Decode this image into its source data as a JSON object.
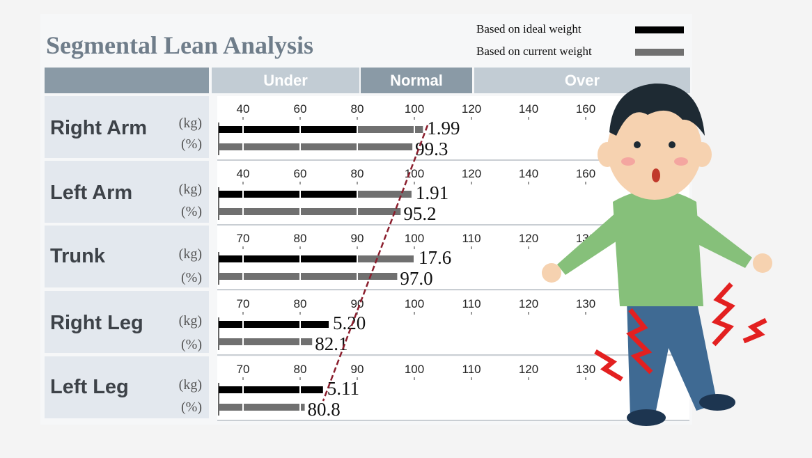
{
  "title": "Segmental Lean Analysis",
  "legend": [
    {
      "label": "Based on ideal weight",
      "color": "#000000"
    },
    {
      "label": "Based on current weight",
      "color": "#707070"
    }
  ],
  "header": {
    "under": "Under",
    "normal": "Normal",
    "over": "Over"
  },
  "units": {
    "kg": "(kg)",
    "pct": "(%)"
  },
  "percent_mark": "%",
  "colors": {
    "header_dark": "#8a9aa6",
    "header_light": "#c2ccd4",
    "trend_line": "#8b1e2d",
    "ideal_bar": "#000000",
    "current_bar": "#707070"
  },
  "chart_data": {
    "type": "bar",
    "title": "Segmental Lean Analysis",
    "orientation": "horizontal",
    "series": [
      {
        "name": "Based on ideal weight"
      },
      {
        "name": "Based on current weight"
      }
    ],
    "rows": [
      {
        "name": "Right Arm",
        "ticks": [
          "40",
          "60",
          "80",
          "100",
          "120",
          "140",
          "160"
        ],
        "axis_min": 40,
        "axis_max": 160,
        "kg_label": "1.99",
        "kg_bar_pct": 103,
        "pct_label": "99.3",
        "pct_bar": 99.3
      },
      {
        "name": "Left Arm",
        "ticks": [
          "40",
          "60",
          "80",
          "100",
          "120",
          "140",
          "160"
        ],
        "axis_min": 40,
        "axis_max": 160,
        "kg_label": "1.91",
        "kg_bar_pct": 99,
        "pct_label": "95.2",
        "pct_bar": 95.2
      },
      {
        "name": "Trunk",
        "ticks": [
          "70",
          "80",
          "90",
          "100",
          "110",
          "120",
          "130"
        ],
        "axis_min": 70,
        "axis_max": 130,
        "kg_label": "17.6",
        "kg_bar_pct": 100,
        "pct_label": "97.0",
        "pct_bar": 97.0
      },
      {
        "name": "Right Leg",
        "ticks": [
          "70",
          "80",
          "90",
          "100",
          "110",
          "120",
          "130"
        ],
        "axis_min": 70,
        "axis_max": 130,
        "kg_label": "5.20",
        "kg_bar_pct": 85,
        "pct_label": "82.1",
        "pct_bar": 82.1
      },
      {
        "name": "Left Leg",
        "ticks": [
          "70",
          "80",
          "90",
          "100",
          "110",
          "120",
          "130"
        ],
        "axis_min": 70,
        "axis_max": 130,
        "kg_label": "5.11",
        "kg_bar_pct": 84,
        "pct_label": "80.8",
        "pct_bar": 80.8
      }
    ],
    "normal_range_ticks": [
      "80",
      "120"
    ],
    "grid": false
  }
}
